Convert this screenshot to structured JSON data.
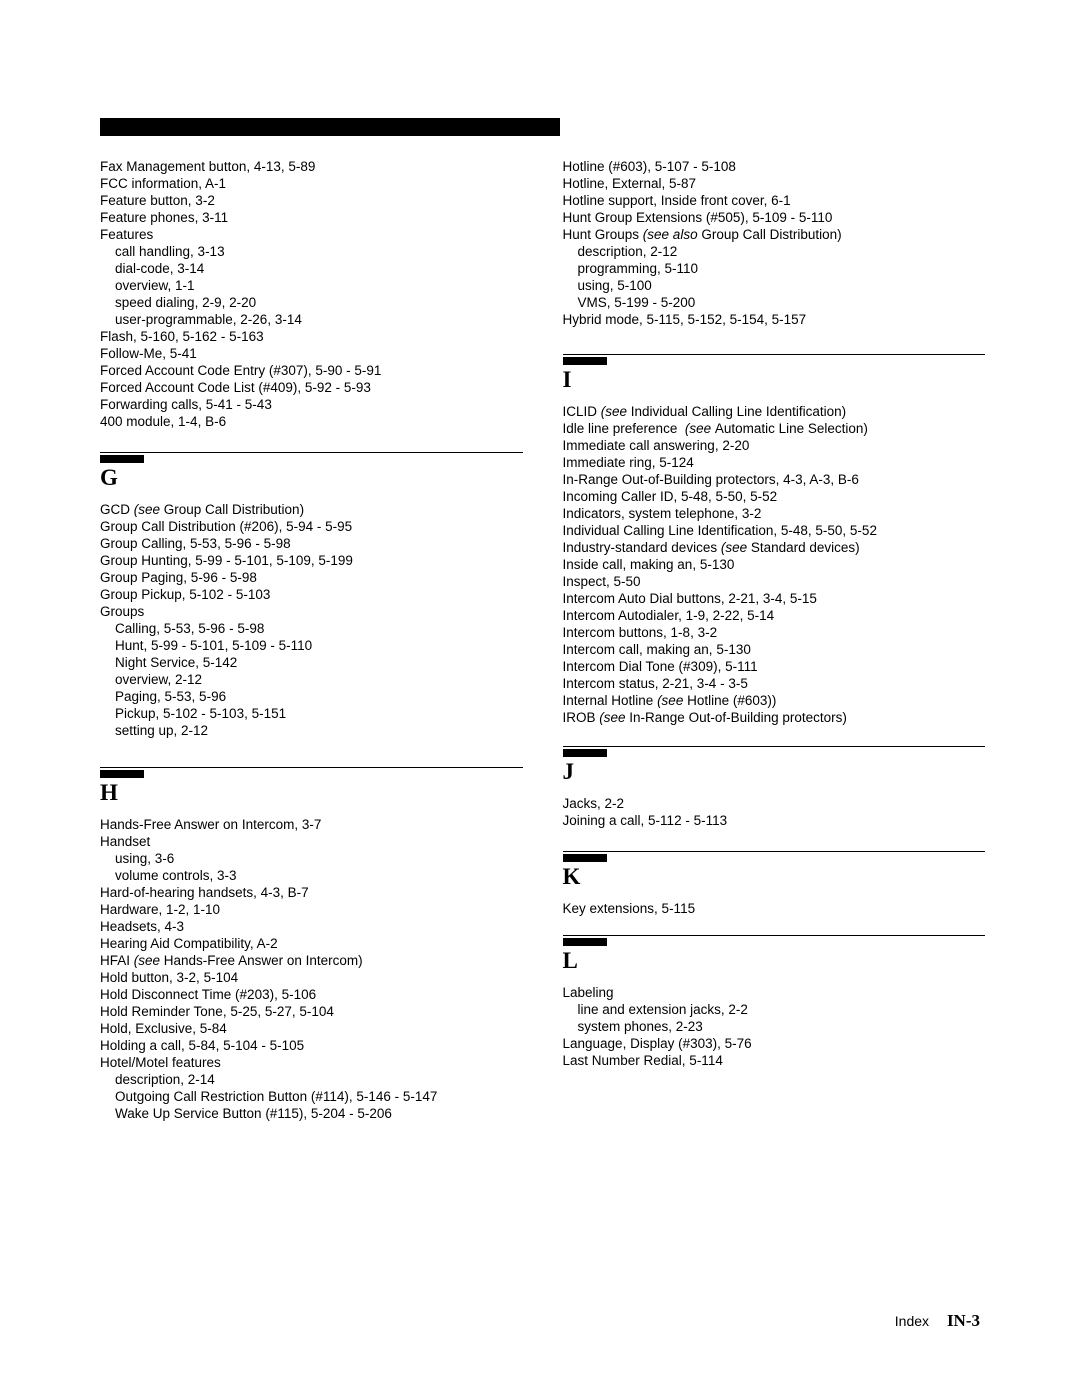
{
  "col_left": {
    "block_f": [
      "Fax Management button, 4-13, 5-89",
      "FCC information, A-1",
      "Feature button, 3-2",
      "Feature phones, 3-11",
      "Features",
      "    call handling, 3-13",
      "    dial-code, 3-14",
      "    overview, 1-1",
      "    speed dialing, 2-9, 2-20",
      "    user-programmable, 2-26, 3-14",
      "Flash, 5-160, 5-162 - 5-163",
      "Follow-Me, 5-41",
      "Forced Account Code Entry (#307), 5-90 - 5-91",
      "Forced Account Code List (#409), 5-92 - 5-93",
      "Forwarding calls, 5-41 - 5-43",
      "400 module, 1-4, B-6"
    ],
    "g_letter": "G",
    "block_g_first": {
      "pre": "GCD ",
      "italic": "(see ",
      "post": "Group Call Distribution)"
    },
    "block_g": [
      "Group Call Distribution (#206), 5-94 - 5-95",
      "Group Calling, 5-53, 5-96 - 5-98",
      "Group Hunting, 5-99 - 5-101, 5-109, 5-199",
      "Group Paging, 5-96 - 5-98",
      "Group Pickup, 5-102 - 5-103",
      "Groups",
      "    Calling, 5-53, 5-96 - 5-98",
      "    Hunt, 5-99 - 5-101, 5-109 - 5-110",
      "    Night Service, 5-142",
      "    overview, 2-12",
      "    Paging, 5-53, 5-96",
      "    Pickup, 5-102 - 5-103, 5-151",
      "    setting up, 2-12"
    ],
    "h_letter": "H",
    "block_h_pre": [
      "Hands-Free Answer on Intercom, 3-7",
      "Handset",
      "    using, 3-6",
      "    volume controls, 3-3",
      "Hard-of-hearing handsets, 4-3, B-7",
      "Hardware, 1-2, 1-10",
      "Headsets, 4-3",
      "Hearing Aid Compatibility, A-2"
    ],
    "block_h_hfai": {
      "pre": "HFAI ",
      "italic": "(see ",
      "post": "Hands-Free Answer on Intercom)"
    },
    "block_h_post": [
      "Hold button, 3-2, 5-104",
      "Hold Disconnect Time (#203), 5-106",
      "Hold Reminder Tone, 5-25, 5-27, 5-104",
      "Hold, Exclusive, 5-84",
      "Holding a call, 5-84, 5-104 - 5-105",
      "Hotel/Motel features",
      "    description, 2-14",
      "    Outgoing Call Restriction Button (#114), 5-146 - 5-147",
      "    Wake Up Service Button (#115), 5-204 - 5-206"
    ]
  },
  "col_right": {
    "block_h2_pre": [
      "Hotline (#603), 5-107 - 5-108",
      "Hotline, External, 5-87",
      "Hotline support, Inside front cover, 6-1",
      "Hunt Group Extensions (#505), 5-109 - 5-110"
    ],
    "block_h2_hunt": {
      "pre": "Hunt Groups ",
      "italic": "(see also ",
      "post": "Group Call Distribution)"
    },
    "block_h2_post": [
      "    description, 2-12",
      "    programming, 5-110",
      "    using, 5-100",
      "    VMS, 5-199 - 5-200",
      "Hybrid mode, 5-115, 5-152, 5-154, 5-157"
    ],
    "i_letter": "I",
    "block_i_iclid": {
      "pre": "ICLID ",
      "italic": "(see ",
      "post": "Individual Calling Line Identification)"
    },
    "block_i_idle": {
      "pre": "Idle line preference  ",
      "italic": "(see ",
      "post": "Automatic Line Selection)"
    },
    "block_i_mid": [
      "Immediate call answering, 2-20",
      "Immediate ring, 5-124",
      "In-Range Out-of-Building protectors, 4-3, A-3, B-6",
      "Incoming Caller ID, 5-48, 5-50, 5-52",
      "Indicators, system telephone, 3-2",
      "Individual Calling Line Identification, 5-48, 5-50, 5-52"
    ],
    "block_i_industry": {
      "pre": "Industry-standard devices ",
      "italic": "(see ",
      "post": "Standard devices)"
    },
    "block_i_mid2": [
      "Inside call, making an, 5-130",
      "Inspect, 5-50",
      "Intercom Auto Dial buttons, 2-21, 3-4, 5-15",
      "Intercom Autodialer, 1-9, 2-22, 5-14",
      "Intercom buttons, 1-8, 3-2",
      "Intercom call, making an, 5-130",
      "Intercom Dial Tone (#309), 5-111",
      "Intercom status, 2-21, 3-4 - 3-5"
    ],
    "block_i_internal": {
      "pre": "Internal Hotline ",
      "italic": "(see ",
      "post": "Hotline (#603))"
    },
    "block_i_irob": {
      "pre": "IROB ",
      "italic": "(see ",
      "post": "In-Range Out-of-Building protectors)"
    },
    "j_letter": "J",
    "block_j": [
      "Jacks, 2-2",
      "Joining a call, 5-112 - 5-113"
    ],
    "k_letter": "K",
    "block_k": [
      "Key extensions, 5-115"
    ],
    "l_letter": "L",
    "block_l": [
      "Labeling",
      "    line and extension jacks, 2-2",
      "    system phones, 2-23",
      "Language, Display (#303), 5-76",
      "Last Number Redial, 5-114"
    ]
  },
  "footer": {
    "label": "Index",
    "page": "IN-3"
  }
}
